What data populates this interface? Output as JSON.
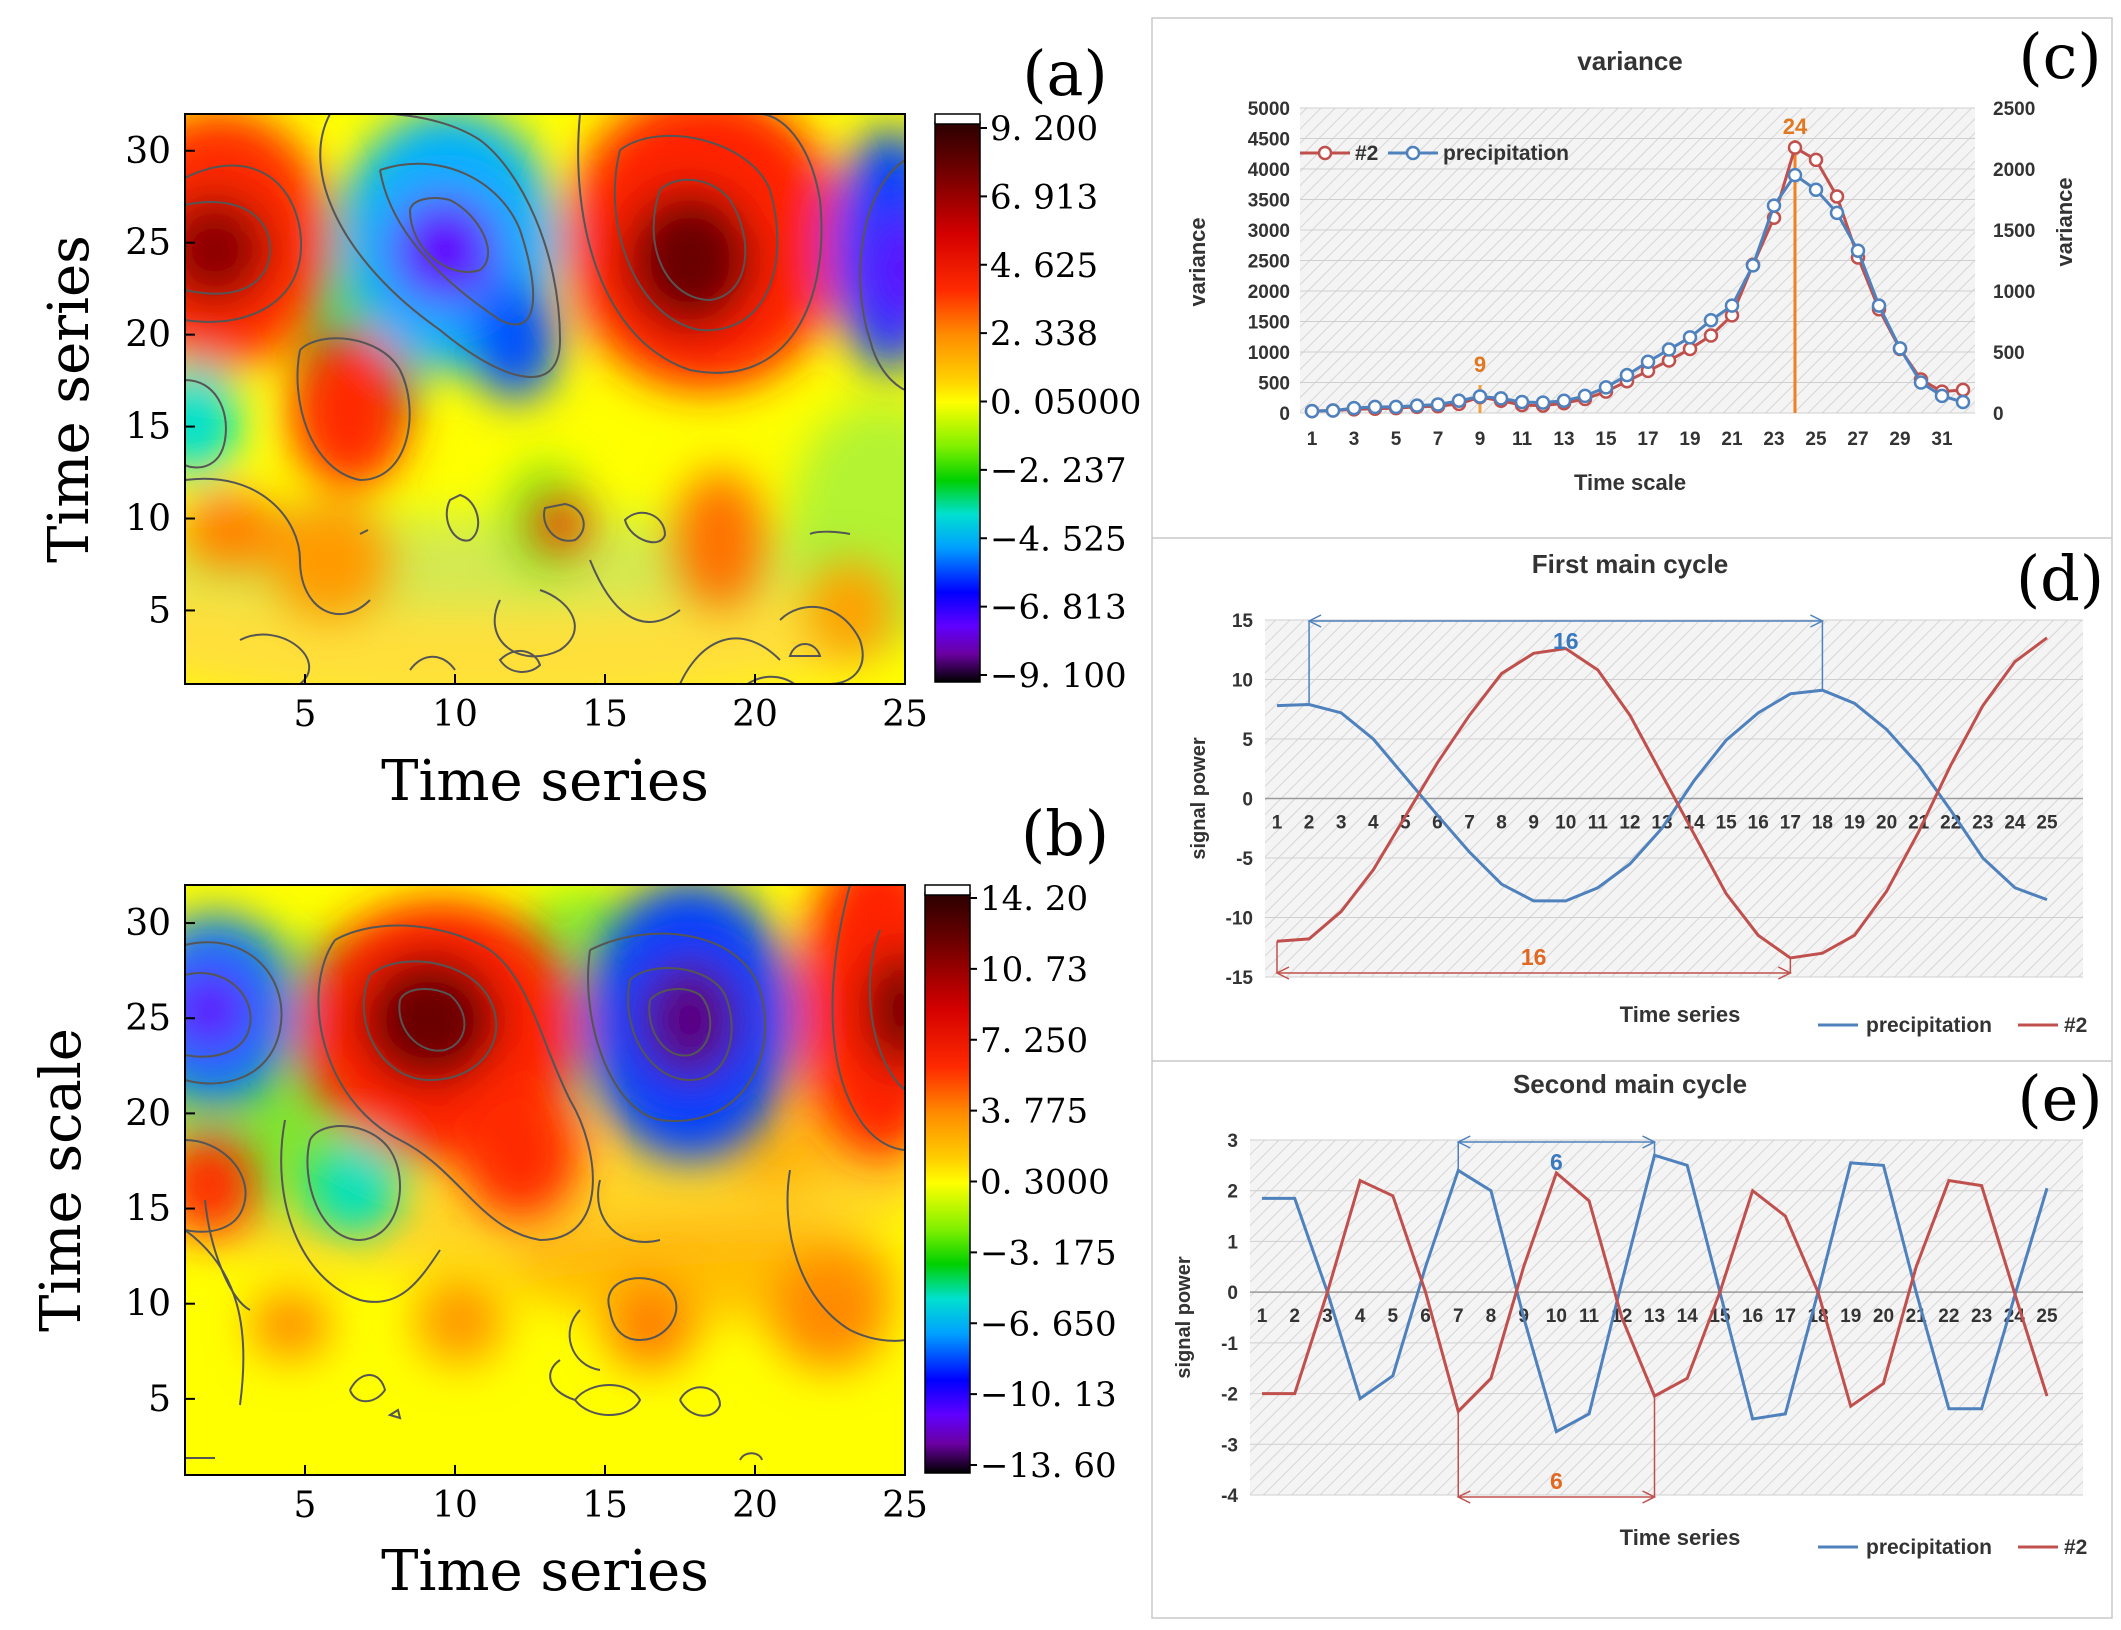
{
  "panels": {
    "a": {
      "label": "(a)",
      "ylabel": "Time series",
      "xlabel": "Time series",
      "xticks": [
        "5",
        "10",
        "15",
        "20",
        "25"
      ],
      "yticks": [
        "30",
        "25",
        "20",
        "15",
        "10",
        "5"
      ],
      "colorbar": [
        "9. 200",
        "6. 913",
        "4. 625",
        "2. 338",
        "0. 05000",
        "−2. 237",
        "−4. 525",
        "−6. 813",
        "−9. 100"
      ]
    },
    "b": {
      "label": "(b)",
      "ylabel": "Time scale",
      "xlabel": "Time series",
      "xticks": [
        "5",
        "10",
        "15",
        "20",
        "25"
      ],
      "yticks": [
        "30",
        "25",
        "20",
        "15",
        "10",
        "5"
      ],
      "colorbar": [
        "14. 20",
        "10. 73",
        "7. 250",
        "3. 775",
        "0. 3000",
        "−3. 175",
        "−6. 650",
        "−10. 13",
        "−13. 60"
      ]
    },
    "c": {
      "label": "(c)"
    },
    "d": {
      "label": "(d)"
    },
    "e": {
      "label": "(e)"
    }
  },
  "chart_data": [
    {
      "id": "a",
      "type": "heatmap",
      "title": "",
      "xlabel": "Time series",
      "ylabel": "Time series",
      "xlim": [
        1,
        25
      ],
      "ylim": [
        1,
        32
      ],
      "zlim": [
        -9.1,
        9.2
      ],
      "features": [
        {
          "x": 1.5,
          "y": 24.5,
          "z": 6.5
        },
        {
          "x": 9.5,
          "y": 24.0,
          "z": -8.0
        },
        {
          "x": 17.5,
          "y": 23.0,
          "z": 8.5
        },
        {
          "x": 25.0,
          "y": 22.0,
          "z": -7.0
        },
        {
          "x": 7.0,
          "y": 16.0,
          "z": 5.0
        },
        {
          "x": 1.0,
          "y": 15.0,
          "z": -4.0
        },
        {
          "x": 13.5,
          "y": 9.5,
          "z": 3.0
        },
        {
          "x": 19.0,
          "y": 9.0,
          "z": 3.5
        }
      ]
    },
    {
      "id": "b",
      "type": "heatmap",
      "title": "",
      "xlabel": "Time series",
      "ylabel": "Time scale",
      "xlim": [
        1,
        25
      ],
      "ylim": [
        1,
        32
      ],
      "zlim": [
        -13.6,
        14.2
      ],
      "features": [
        {
          "x": 1.5,
          "y": 24.5,
          "z": -10.0
        },
        {
          "x": 10.0,
          "y": 24.5,
          "z": 11.0
        },
        {
          "x": 17.5,
          "y": 24.0,
          "z": -12.0
        },
        {
          "x": 25.0,
          "y": 24.0,
          "z": 10.0
        },
        {
          "x": 6.8,
          "y": 16.5,
          "z": -4.0
        },
        {
          "x": 1.5,
          "y": 16.0,
          "z": 6.0
        },
        {
          "x": 12.0,
          "y": 18.0,
          "z": 6.0
        }
      ]
    },
    {
      "id": "c",
      "type": "line",
      "title": "variance",
      "xlabel": "Time scale",
      "ylabel": "variance",
      "ylabel_right": "variance",
      "x": [
        1,
        2,
        3,
        4,
        5,
        6,
        7,
        8,
        9,
        10,
        11,
        12,
        13,
        14,
        15,
        16,
        17,
        18,
        19,
        20,
        21,
        22,
        23,
        24,
        25,
        26,
        27,
        28,
        29,
        30,
        31,
        32
      ],
      "xticks": [
        "1",
        "3",
        "5",
        "7",
        "9",
        "11",
        "13",
        "15",
        "17",
        "19",
        "21",
        "23",
        "25",
        "27",
        "29",
        "31"
      ],
      "yticks_left": [
        "5000",
        "4500",
        "4000",
        "3500",
        "3000",
        "2500",
        "2000",
        "1500",
        "1000",
        "500",
        "0"
      ],
      "yticks_right": [
        "2500",
        "2000",
        "1500",
        "1000",
        "500",
        "0"
      ],
      "ylim": [
        0,
        5000
      ],
      "ylim_right": [
        0,
        2500
      ],
      "series": [
        {
          "name": "#2",
          "axis": "left",
          "color": "#c0504d",
          "values": [
            30,
            40,
            60,
            70,
            80,
            100,
            110,
            150,
            260,
            200,
            130,
            120,
            160,
            230,
            350,
            520,
            690,
            860,
            1050,
            1270,
            1600,
            2430,
            3200,
            4350,
            4150,
            3550,
            2550,
            1700,
            1050,
            550,
            350,
            380
          ]
        },
        {
          "name": "precipitation",
          "axis": "right",
          "color": "#4f81bd",
          "values": [
            15,
            20,
            40,
            50,
            50,
            60,
            70,
            100,
            135,
            120,
            90,
            85,
            100,
            140,
            210,
            310,
            420,
            520,
            620,
            760,
            880,
            1210,
            1700,
            1950,
            1830,
            1640,
            1330,
            880,
            530,
            250,
            140,
            90
          ]
        }
      ],
      "legend": [
        "#2",
        "precipitation"
      ],
      "annotations": [
        {
          "text": "9",
          "x": 9
        },
        {
          "text": "24",
          "x": 24
        }
      ]
    },
    {
      "id": "d",
      "type": "line",
      "title": "First main cycle",
      "xlabel": "Time series",
      "ylabel": "signal power",
      "ylim": [
        -15,
        15
      ],
      "yticks": [
        "15",
        "10",
        "5",
        "0",
        "-5",
        "-10",
        "-15"
      ],
      "categories": [
        "1",
        "2",
        "3",
        "4",
        "5",
        "6",
        "7",
        "8",
        "9",
        "10",
        "11",
        "12",
        "13",
        "14",
        "15",
        "16",
        "17",
        "18",
        "19",
        "20",
        "21",
        "22",
        "23",
        "24",
        "25"
      ],
      "series": [
        {
          "name": "precipitation",
          "color": "#4f81bd",
          "values": [
            7.8,
            7.9,
            7.2,
            5.0,
            1.8,
            -1.4,
            -4.5,
            -7.2,
            -8.6,
            -8.6,
            -7.5,
            -5.5,
            -2.5,
            1.5,
            4.9,
            7.2,
            8.8,
            9.1,
            8.0,
            5.8,
            2.8,
            -1.0,
            -5.0,
            -7.5,
            -8.5
          ]
        },
        {
          "name": "#2",
          "color": "#c0504d",
          "values": [
            -12.0,
            -11.8,
            -9.5,
            -6.0,
            -1.5,
            3.0,
            7.0,
            10.5,
            12.2,
            12.6,
            10.8,
            7.0,
            2.0,
            -3.0,
            -8.0,
            -11.5,
            -13.4,
            -13.0,
            -11.5,
            -7.8,
            -2.8,
            2.8,
            7.8,
            11.5,
            13.5
          ]
        }
      ],
      "legend": [
        "precipitation",
        "#2"
      ],
      "annotations": [
        {
          "text": "16",
          "from": 2,
          "to": 18,
          "series": "precipitation"
        },
        {
          "text": "16",
          "from": 1,
          "to": 17,
          "series": "#2"
        }
      ]
    },
    {
      "id": "e",
      "type": "line",
      "title": "Second main cycle",
      "xlabel": "Time series",
      "ylabel": "signal power",
      "ylim": [
        -4,
        3
      ],
      "yticks": [
        "3",
        "2",
        "1",
        "0",
        "-1",
        "-2",
        "-3",
        "-4"
      ],
      "categories": [
        "1",
        "2",
        "3",
        "4",
        "5",
        "6",
        "7",
        "8",
        "9",
        "10",
        "11",
        "12",
        "13",
        "14",
        "15",
        "16",
        "17",
        "18",
        "19",
        "20",
        "21",
        "22",
        "23",
        "24",
        "25"
      ],
      "series": [
        {
          "name": "precipitation",
          "color": "#4f81bd",
          "values": [
            1.85,
            1.85,
            0.0,
            -2.1,
            -1.65,
            0.5,
            2.4,
            2.0,
            -0.5,
            -2.75,
            -2.4,
            0.2,
            2.7,
            2.5,
            0.0,
            -2.5,
            -2.4,
            0.0,
            2.55,
            2.5,
            0.0,
            -2.3,
            -2.3,
            -0.1,
            2.05
          ]
        },
        {
          "name": "#2",
          "color": "#c0504d",
          "values": [
            -2.0,
            -2.0,
            0.0,
            2.2,
            1.9,
            0.0,
            -2.35,
            -1.7,
            0.5,
            2.35,
            1.8,
            -0.5,
            -2.05,
            -1.7,
            0.0,
            2.0,
            1.5,
            0.0,
            -2.25,
            -1.8,
            0.5,
            2.2,
            2.1,
            0.0,
            -2.05
          ]
        }
      ],
      "legend": [
        "precipitation",
        "#2"
      ],
      "annotations": [
        {
          "text": "6",
          "from": 7,
          "to": 13,
          "series": "precipitation"
        },
        {
          "text": "6",
          "from": 7,
          "to": 13,
          "series": "#2"
        }
      ]
    }
  ]
}
